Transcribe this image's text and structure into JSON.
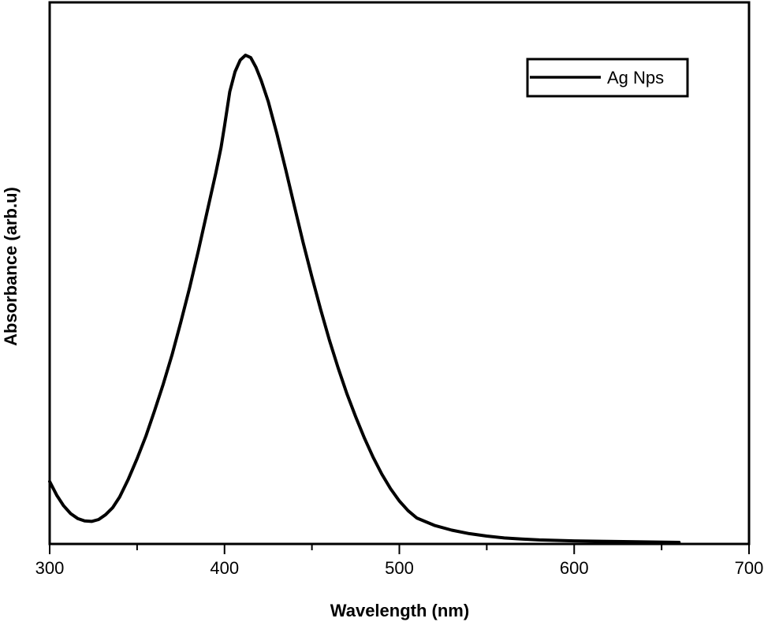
{
  "chart_data": {
    "type": "line",
    "title": "",
    "xlabel": "Wavelength (nm)",
    "ylabel": "Absorbance (arb.u)",
    "xlim": [
      300,
      700
    ],
    "ylim": [
      0,
      1.0
    ],
    "x_ticks": [
      300,
      400,
      500,
      600,
      700
    ],
    "x_tick_labels": [
      "300",
      "400",
      "500",
      "600",
      "700"
    ],
    "x_minor_ticks": [
      350,
      450,
      550,
      650
    ],
    "y_ticks_labeled": false,
    "grid": false,
    "legend": {
      "position": "top-right",
      "entries": [
        "Ag Nps"
      ]
    },
    "series": [
      {
        "name": "Ag Nps",
        "color": "#000000",
        "x": [
          300,
          304,
          308,
          312,
          316,
          320,
          324,
          328,
          332,
          336,
          340,
          345,
          350,
          355,
          360,
          365,
          370,
          375,
          380,
          385,
          390,
          395,
          398,
          400,
          403,
          406,
          409,
          412,
          415,
          418,
          421,
          425,
          430,
          435,
          440,
          445,
          450,
          455,
          460,
          465,
          470,
          475,
          480,
          485,
          490,
          495,
          500,
          505,
          510,
          520,
          530,
          540,
          550,
          560,
          570,
          580,
          590,
          600,
          620,
          640,
          660
        ],
        "y": [
          0.125,
          0.097,
          0.075,
          0.059,
          0.049,
          0.044,
          0.043,
          0.047,
          0.057,
          0.071,
          0.093,
          0.13,
          0.172,
          0.218,
          0.27,
          0.325,
          0.385,
          0.452,
          0.522,
          0.598,
          0.678,
          0.758,
          0.81,
          0.855,
          0.925,
          0.966,
          0.99,
          1.0,
          0.995,
          0.975,
          0.948,
          0.905,
          0.838,
          0.765,
          0.69,
          0.615,
          0.545,
          0.478,
          0.415,
          0.358,
          0.305,
          0.258,
          0.214,
          0.175,
          0.14,
          0.11,
          0.085,
          0.065,
          0.05,
          0.035,
          0.025,
          0.018,
          0.013,
          0.009,
          0.007,
          0.005,
          0.004,
          0.003,
          0.002,
          0.001,
          0.0
        ]
      }
    ]
  }
}
